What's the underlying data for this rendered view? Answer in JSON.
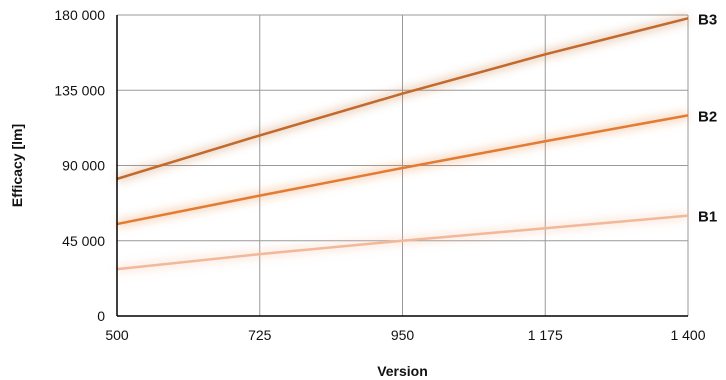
{
  "chart_data": {
    "type": "line",
    "title": "",
    "xlabel": "Version",
    "ylabel": "Efficacy [lm]",
    "xlim": [
      500,
      1400
    ],
    "ylim": [
      0,
      180000
    ],
    "grid": true,
    "legend": "direct labels at right end of lines",
    "x_ticks": [
      "500",
      "725",
      "950",
      "1 175",
      "1 400"
    ],
    "y_ticks": [
      "0",
      "45 000",
      "90 000",
      "135 000",
      "180 000"
    ],
    "series": [
      {
        "name": "B1",
        "color": "#f2b89a",
        "points": [
          {
            "x": 500,
            "y": 28000
          },
          {
            "x": 725,
            "y": 37000
          },
          {
            "x": 950,
            "y": 45000
          },
          {
            "x": 1175,
            "y": 52500
          },
          {
            "x": 1400,
            "y": 60000
          }
        ]
      },
      {
        "name": "B2",
        "color": "#e47b32",
        "points": [
          {
            "x": 500,
            "y": 55000
          },
          {
            "x": 725,
            "y": 72000
          },
          {
            "x": 950,
            "y": 88500
          },
          {
            "x": 1175,
            "y": 104500
          },
          {
            "x": 1400,
            "y": 120000
          }
        ]
      },
      {
        "name": "B3",
        "color": "#c26a2d",
        "points": [
          {
            "x": 500,
            "y": 82000
          },
          {
            "x": 725,
            "y": 108000
          },
          {
            "x": 950,
            "y": 133000
          },
          {
            "x": 1175,
            "y": 156500
          },
          {
            "x": 1400,
            "y": 178000
          }
        ]
      }
    ]
  }
}
